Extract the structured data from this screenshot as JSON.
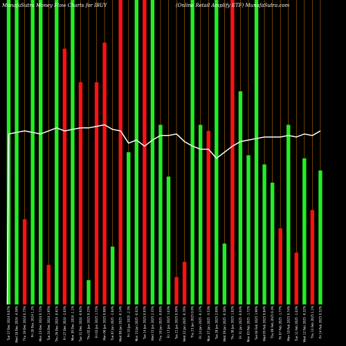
{
  "chart_data": {
    "type": "bar",
    "title_left": "MunafaSutra  Money Flow  Charts for IBUY",
    "title_right": "(Online    Retail Amplify ETF)  MunafaSutra.com",
    "colors": {
      "up": "#22ee22",
      "down": "#ff1111",
      "grid": "#ff9900",
      "line": "#ffffff",
      "background": "#000000"
    },
    "grid": true,
    "categories": [
      "Tue 17 Dec 2024",
      "Wed 18 Dec 2024",
      "Thu 19 Dec 2024",
      "Fri 20 Dec 2024",
      "Mon 23 Dec 2024",
      "Tue 24 Dec 2024",
      "Thu 26 Dec 2024",
      "Fri 27 Dec 2024",
      "Mon 30 Dec 2024",
      "Tue 31 Dec 2024",
      "Thu 02 Jan 2025",
      "Fri 03 Jan 2025",
      "Mon 06 Jan 2025",
      "Tue 07 Jan 2025",
      "Wed 08 Jan 2025",
      "Fri 10 Jan 2025",
      "Mon 13 Jan 2025",
      "Tue 14 Jan 2025",
      "Wed 15 Jan 2025",
      "Thu 16 Jan 2025",
      "Fri 17 Jan 2025",
      "Tue 21 Jan 2025",
      "Wed 22 Jan 2025",
      "Thu 23 Jan 2025",
      "Fri 24 Jan 2025",
      "Mon 27 Jan 2025",
      "Tue 28 Jan 2025",
      "Wed 29 Jan 2025",
      "Thu 30 Jan 2025",
      "Fri 31 Jan 2025",
      "Mon 03 Feb 2025",
      "Tue 04 Feb 2025",
      "Wed 05 Feb 2025",
      "Thu 06 Feb 2025",
      "Fri 07 Feb 2025",
      "Mon 10 Feb 2025",
      "Tue 11 Feb 2025",
      "Wed 12 Feb 2025",
      "Thu 13 Feb 2025",
      "Fri 14 Feb 2025"
    ],
    "tick_labels": [
      "Tue 17 Dec 2024 0.07%",
      "Wed 18 Dec 2024 -4.58%",
      "Thu 19 Dec 2024 0.75%",
      "Fri 20 Dec 2024 1.2%",
      "Mon 23 Dec 2024 0.72%",
      "Tue 24 Dec 2024 1.95%",
      "Thu 26 Dec 2024 -0.61%",
      "Fri 27 Dec 2024 -2.03%",
      "Mon 30 Dec 2024 -1.1%",
      "Tue 31 Dec 2024 -0.92%",
      "Thu 02 Jan 2025 0.25%",
      "Fri 03 Jan 2025 1.72%",
      "Mon 06 Jan 2025 0.98%",
      "Tue 07 Jan 2025 -2.04%",
      "Wed 08 Jan 2025 -0.14%",
      "Fri 10 Jan 2025 -2.3%",
      "Mon 13 Jan 2025 -0.62%",
      "Tue 14 Jan 2025 0.93%",
      "Wed 15 Jan 2025 2.35%",
      "Thu 16 Jan 2025 -0.09%",
      "Fri 17 Jan 2025 1.03%",
      "Tue 21 Jan 2025 0.56%",
      "Wed 22 Jan 2025 -0.76%",
      "Thu 23 Jan 2025 0.6%",
      "Fri 24 Jan 2025 -0.17%",
      "Mon 27 Jan 2025 -3.53%",
      "Tue 28 Jan 2025 2.09%",
      "Wed 29 Jan 2025 -0.58%",
      "Thu 30 Jan 2025 1.02%",
      "Fri 31 Jan 2025 -0.64%",
      "Mon 03 Feb 2025 -1.72%",
      "Tue 04 Feb 2025 1.96%",
      "Wed 05 Feb 2025 0.84%",
      "Thu 06 Feb 2025 0.4%",
      "Fri 07 Feb 2025 -1.77%",
      "Mon 10 Feb 2025 0.74%",
      "Tue 11 Feb 2025 -1.03%",
      "Wed 12 Feb 2025 -0.32%",
      "Thu 13 Feb 2025 1.1%",
      "Fri 14 Feb 2025 0.52%"
    ],
    "bar_colors": [
      "green",
      "green",
      "red",
      "green",
      "green",
      "red",
      "green",
      "red",
      "green",
      "red",
      "green",
      "red",
      "red",
      "green",
      "red",
      "green",
      "green",
      "red",
      "green",
      "green",
      "green",
      "red",
      "red",
      "green",
      "green",
      "red",
      "green",
      "green",
      "red",
      "green",
      "green",
      "green",
      "green",
      "green",
      "red",
      "green",
      "red",
      "green",
      "red",
      "green"
    ],
    "bar_values": [
      100,
      100,
      28,
      100,
      100,
      13,
      100,
      84,
      100,
      73,
      8,
      73,
      86,
      19,
      100,
      50,
      100,
      100,
      100,
      59,
      42,
      9,
      14,
      100,
      59,
      57,
      100,
      20,
      100,
      70,
      49,
      100,
      46,
      40,
      25,
      59,
      17,
      48,
      31,
      44
    ],
    "line_values": [
      56,
      56.5,
      57,
      56.5,
      56,
      57,
      58,
      57,
      57.5,
      58,
      58,
      58.5,
      59,
      57.5,
      57,
      53,
      54,
      52,
      54,
      55.5,
      55.5,
      56,
      53.5,
      52,
      51,
      51,
      48,
      50,
      52,
      53.5,
      54,
      54.5,
      55,
      55,
      55,
      55.5,
      55,
      56,
      55.5,
      57
    ],
    "ylim": [
      0,
      100
    ]
  }
}
